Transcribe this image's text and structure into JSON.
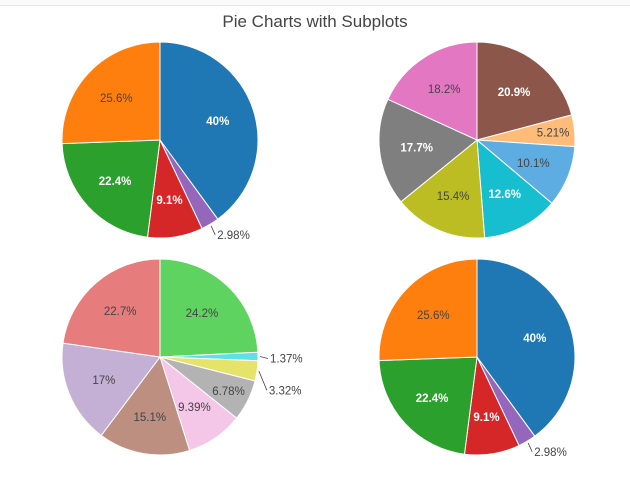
{
  "title": "Pie Charts with Subplots",
  "chart_data": [
    {
      "type": "pie",
      "title": "",
      "labels": [
        "40%",
        "2.98%",
        "9.1%",
        "22.4%",
        "25.6%"
      ],
      "values": [
        40,
        2.98,
        9.1,
        22.4,
        25.6
      ],
      "colors": [
        "#1f77b4",
        "#9467bd",
        "#d62728",
        "#2ca02c",
        "#ff7f0e"
      ],
      "outside": [
        false,
        true,
        false,
        false,
        false
      ],
      "label_colors": [
        "#ffffff",
        "#444444",
        "#ffffff",
        "#ffffff",
        "#444444"
      ]
    },
    {
      "type": "pie",
      "title": "",
      "labels": [
        "20.9%",
        "5.21%",
        "10.1%",
        "12.6%",
        "15.4%",
        "17.7%",
        "18.2%"
      ],
      "values": [
        20.9,
        5.21,
        10.1,
        12.6,
        15.4,
        17.7,
        18.2
      ],
      "colors": [
        "#8c564b",
        "#ffbb78",
        "#5dade2",
        "#17becf",
        "#bcbd22",
        "#7f7f7f",
        "#e377c2"
      ],
      "outside": [
        false,
        false,
        false,
        false,
        false,
        false,
        false
      ],
      "label_colors": [
        "#ffffff",
        "#444444",
        "#444444",
        "#ffffff",
        "#444444",
        "#ffffff",
        "#444444"
      ]
    },
    {
      "type": "pie",
      "title": "",
      "labels": [
        "24.2%",
        "1.37%",
        "3.32%",
        "6.78%",
        "9.39%",
        "15.1%",
        "17%",
        "22.7%"
      ],
      "values": [
        24.2,
        1.37,
        3.32,
        6.78,
        9.39,
        15.1,
        17.0,
        22.7
      ],
      "colors": [
        "#5fd35f",
        "#5ce1e6",
        "#e6e36b",
        "#b3b3b3",
        "#f4c6e7",
        "#bc8f80",
        "#c5b0d5",
        "#e67c7c"
      ],
      "outside": [
        false,
        true,
        true,
        false,
        false,
        false,
        false,
        false
      ],
      "label_colors": [
        "#444444",
        "#444444",
        "#444444",
        "#444444",
        "#444444",
        "#444444",
        "#444444",
        "#444444"
      ]
    },
    {
      "type": "pie",
      "title": "",
      "labels": [
        "40%",
        "2.98%",
        "9.1%",
        "22.4%",
        "25.6%"
      ],
      "values": [
        40,
        2.98,
        9.1,
        22.4,
        25.6
      ],
      "colors": [
        "#1f77b4",
        "#9467bd",
        "#d62728",
        "#2ca02c",
        "#ff7f0e"
      ],
      "outside": [
        false,
        true,
        false,
        false,
        false
      ],
      "label_colors": [
        "#ffffff",
        "#444444",
        "#ffffff",
        "#ffffff",
        "#444444"
      ]
    }
  ]
}
